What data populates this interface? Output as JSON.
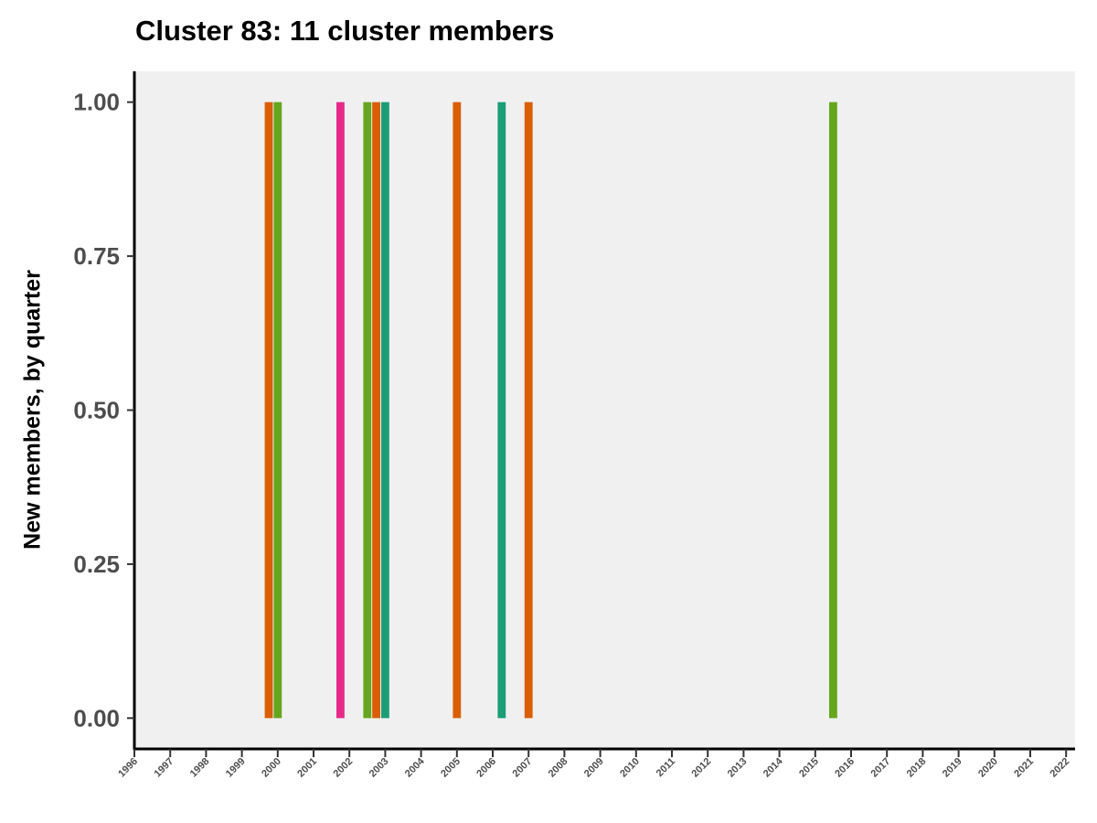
{
  "chart_data": {
    "type": "bar",
    "title": "Cluster 83: 11 cluster members",
    "xlabel": "",
    "ylabel": "New members, by quarter",
    "xlim": [
      1996,
      2022.25
    ],
    "ylim": [
      -0.05,
      1.05
    ],
    "y_ticks": [
      "0.00",
      "0.25",
      "0.50",
      "0.75",
      "1.00"
    ],
    "y_tick_values": [
      0,
      0.25,
      0.5,
      0.75,
      1.0
    ],
    "x_ticks": [
      "1996",
      "1997",
      "1998",
      "1999",
      "2000",
      "2001",
      "2002",
      "2003",
      "2004",
      "2005",
      "2006",
      "2007",
      "2008",
      "2009",
      "2010",
      "2011",
      "2012",
      "2013",
      "2014",
      "2015",
      "2016",
      "2017",
      "2018",
      "2019",
      "2020",
      "2021",
      "2022"
    ],
    "background": "#f0f0f0",
    "grid": false,
    "legend": "none",
    "bars": [
      {
        "x": "1999 Q4",
        "value": 1,
        "color": "#d95f02"
      },
      {
        "x": "2000 Q1",
        "value": 1,
        "color": "#66a61e"
      },
      {
        "x": "2001 Q4",
        "value": 1,
        "color": "#e7298a"
      },
      {
        "x": "2002 Q3",
        "value": 1,
        "color": "#66a61e"
      },
      {
        "x": "2002 Q4",
        "value": 1,
        "color": "#d95f02"
      },
      {
        "x": "2003 Q1",
        "value": 1,
        "color": "#1b9e77"
      },
      {
        "x": "2005 Q1",
        "value": 1,
        "color": "#d95f02"
      },
      {
        "x": "2006 Q2",
        "value": 1,
        "color": "#1b9e77"
      },
      {
        "x": "2007 Q1",
        "value": 1,
        "color": "#d95f02"
      },
      {
        "x": "2015 Q3",
        "value": 1,
        "color": "#66a61e"
      }
    ]
  }
}
